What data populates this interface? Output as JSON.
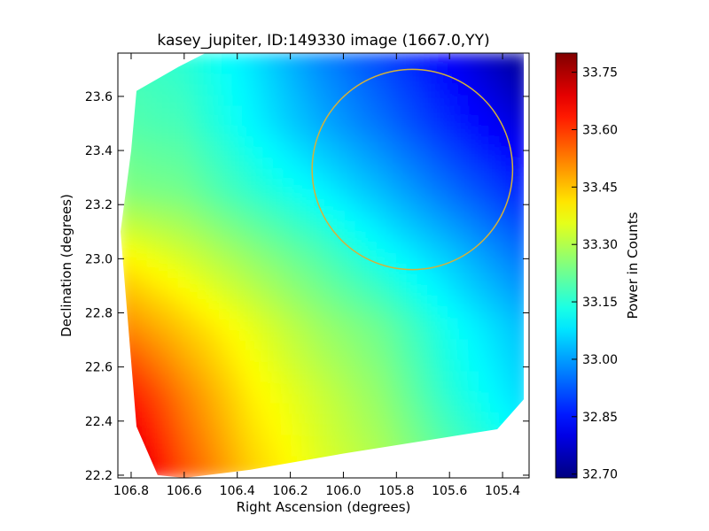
{
  "chart_data": {
    "type": "heatmap",
    "title": "kasey_jupiter, ID:149330 image (1667.0,YY)",
    "xlabel": "Right Ascension (degrees)",
    "ylabel": "Declination (degrees)",
    "xlim": [
      106.85,
      105.3
    ],
    "ylim": [
      22.19,
      23.76
    ],
    "xticks": [
      "106.8",
      "106.6",
      "106.4",
      "106.2",
      "106.0",
      "105.8",
      "105.6",
      "105.4"
    ],
    "xtick_values": [
      106.8,
      106.6,
      106.4,
      106.2,
      106.0,
      105.8,
      105.6,
      105.4
    ],
    "yticks": [
      "22.2",
      "22.4",
      "22.6",
      "22.8",
      "23.0",
      "23.2",
      "23.4",
      "23.6"
    ],
    "ytick_values": [
      22.2,
      22.4,
      22.6,
      22.8,
      23.0,
      23.2,
      23.4,
      23.6
    ],
    "colorbar": {
      "label": "Power in Counts",
      "min": 32.69,
      "max": 33.8,
      "ticks": [
        "32.70",
        "32.85",
        "33.00",
        "33.15",
        "33.30",
        "33.45",
        "33.60",
        "33.75"
      ],
      "tick_values": [
        32.7,
        32.85,
        33.0,
        33.15,
        33.3,
        33.45,
        33.6,
        33.75
      ],
      "colormap": "jet"
    },
    "grid_x": [
      106.85,
      106.6,
      106.35,
      106.1,
      105.85,
      105.6,
      105.3
    ],
    "grid_y": [
      23.76,
      23.5,
      23.25,
      23.0,
      22.75,
      22.5,
      22.19
    ],
    "grid_values": [
      [
        33.18,
        33.15,
        33.08,
        32.98,
        32.9,
        32.82,
        32.7
      ],
      [
        33.2,
        33.18,
        33.1,
        33.02,
        32.95,
        32.87,
        32.78
      ],
      [
        33.25,
        33.23,
        33.16,
        33.1,
        33.03,
        32.95,
        32.86
      ],
      [
        33.4,
        33.34,
        33.27,
        33.2,
        33.12,
        33.05,
        32.95
      ],
      [
        33.52,
        33.44,
        33.36,
        33.28,
        33.22,
        33.12,
        33.03
      ],
      [
        33.66,
        33.52,
        33.4,
        33.33,
        33.26,
        33.15,
        33.06
      ],
      [
        33.78,
        33.58,
        33.44,
        33.36,
        33.3,
        33.22,
        33.12
      ]
    ],
    "valid_region": [
      [
        106.78,
        23.62
      ],
      [
        106.62,
        23.71
      ],
      [
        106.52,
        23.76
      ],
      [
        105.32,
        23.76
      ],
      [
        105.32,
        22.48
      ],
      [
        105.42,
        22.37
      ],
      [
        106.0,
        22.28
      ],
      [
        106.35,
        22.22
      ],
      [
        106.6,
        22.19
      ],
      [
        106.7,
        22.2
      ],
      [
        106.78,
        22.38
      ],
      [
        106.84,
        23.1
      ],
      [
        106.8,
        23.4
      ]
    ],
    "annotation": {
      "shape": "circle",
      "center": [
        105.74,
        23.33
      ],
      "radius_deg": 0.37,
      "color": "#d4b13a"
    }
  }
}
